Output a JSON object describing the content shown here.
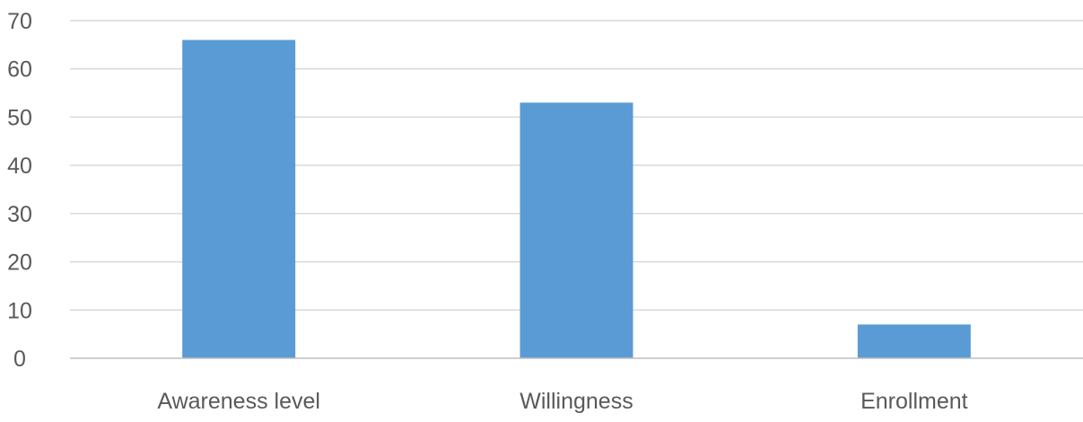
{
  "chart_data": {
    "type": "bar",
    "categories": [
      "Awareness level",
      "Willingness",
      "Enrollment"
    ],
    "values": [
      66,
      53,
      7
    ],
    "ylim": [
      0,
      70
    ],
    "yticks": [
      0,
      10,
      20,
      30,
      40,
      50,
      60,
      70
    ],
    "grid": true,
    "legend": "none",
    "colors": {
      "bar": "#5b9bd5",
      "grid": "#d9d9d9",
      "axis": "#bfbfbf",
      "text": "#595959"
    }
  }
}
